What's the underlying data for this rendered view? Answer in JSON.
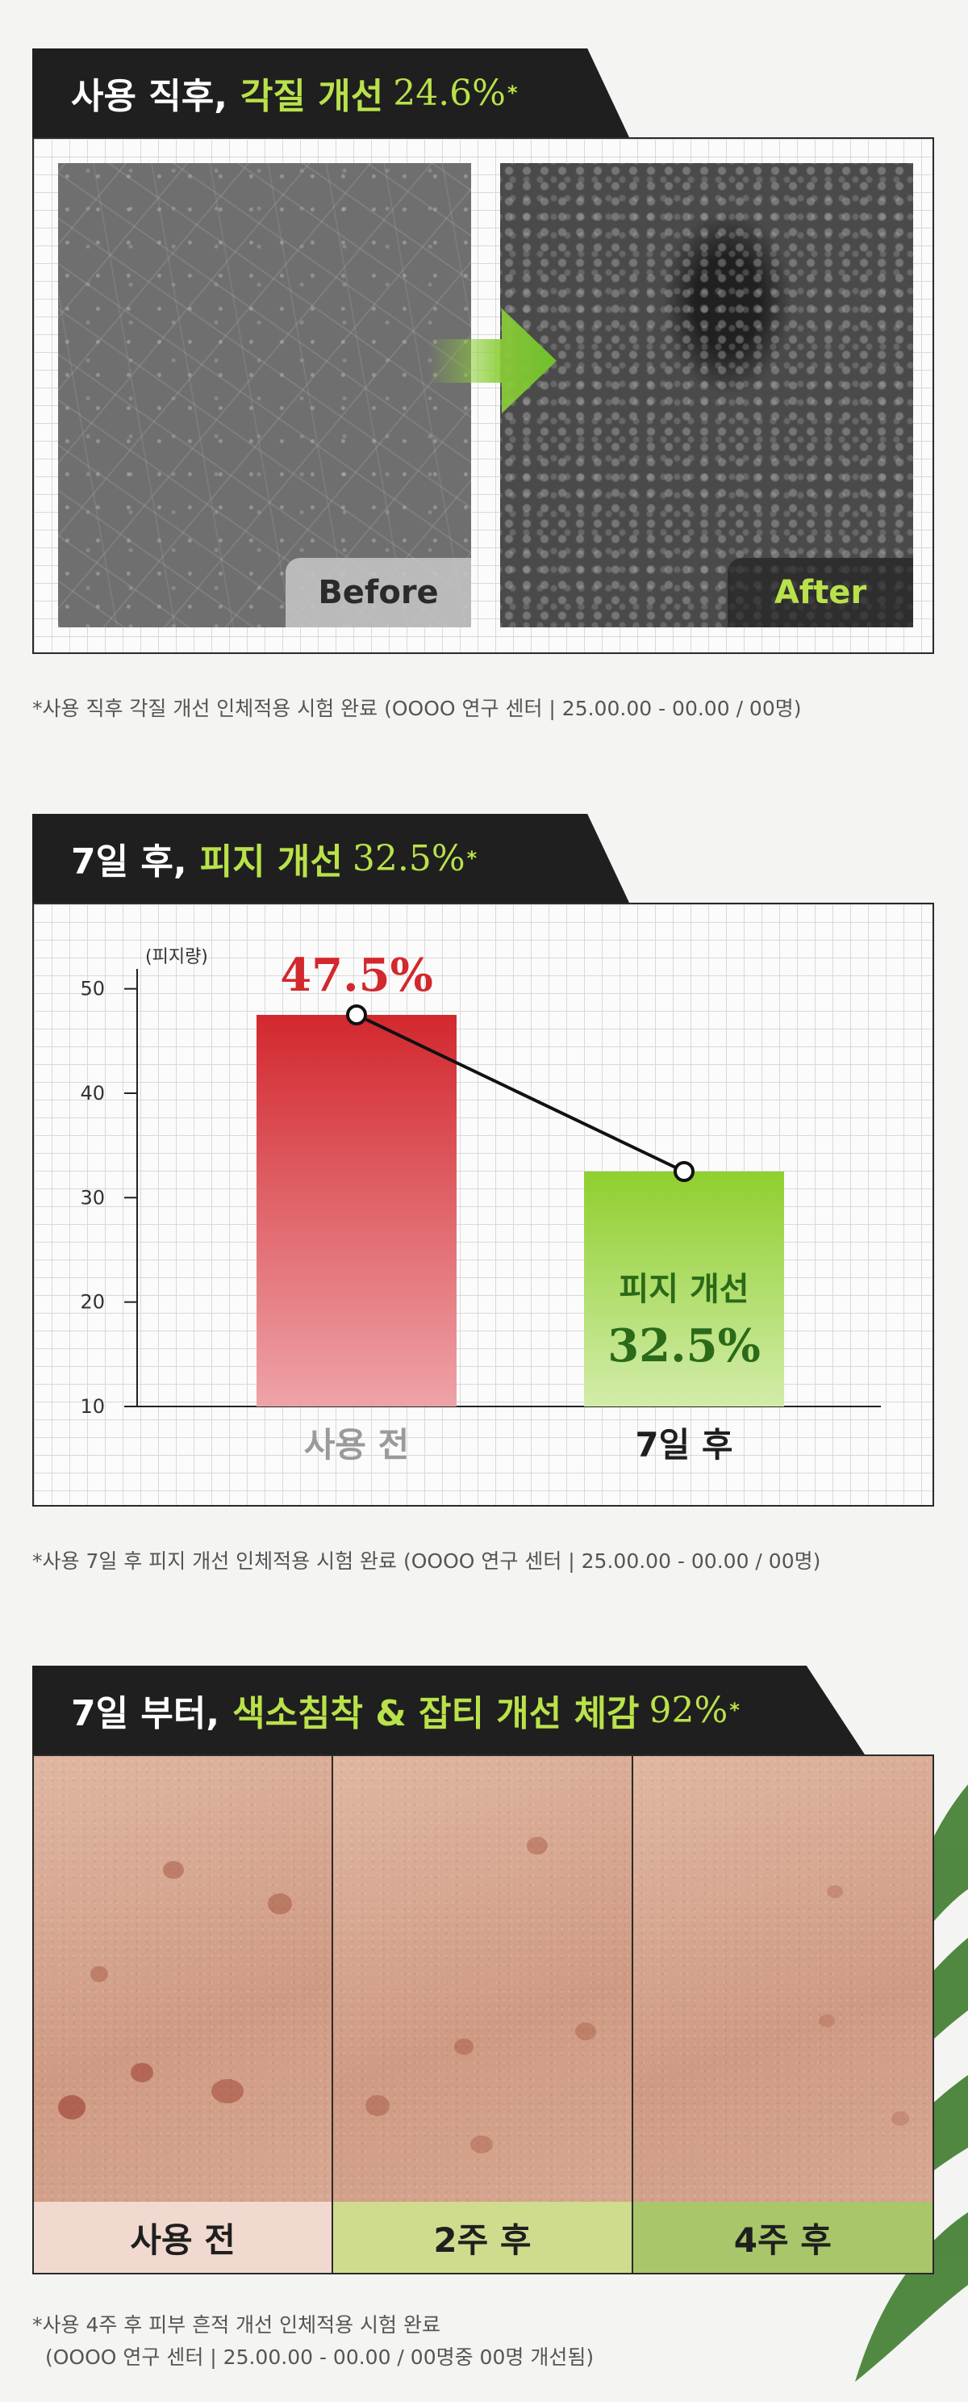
{
  "section1": {
    "title_prefix": "사용 직후,",
    "title_highlight": "각질 개선",
    "title_number": "24.6%",
    "asterisk": "*",
    "before_label": "Before",
    "after_label": "After",
    "footnote": "*사용 직후 각질 개선 인체적용 시험 완료 (OOOO 연구 센터 | 25.00.00 - 00.00 / 00명)"
  },
  "section2": {
    "title_prefix": "7일 후,",
    "title_highlight": "피지 개선",
    "title_number": "32.5%",
    "asterisk": "*",
    "bar2_caption": "피지 개선",
    "footnote": "*사용 7일 후 피지 개선 인체적용 시험 완료 (OOOO 연구 센터 | 25.00.00 - 00.00 / 00명)"
  },
  "chart_data": {
    "type": "bar",
    "ylabel": "(피지량)",
    "ylim": [
      10,
      55
    ],
    "yticks": [
      10,
      20,
      30,
      40,
      50
    ],
    "categories": [
      "사용 전",
      "7일 후"
    ],
    "values": [
      47.5,
      32.5
    ],
    "data_labels": [
      "47.5%",
      "32.5%"
    ],
    "colors": [
      "#d2282e",
      "#8fcf2e"
    ],
    "grid": true,
    "connector_line": true
  },
  "section3": {
    "title_prefix": "7일 부터,",
    "title_highlight": "색소침착 & 잡티 개선 체감",
    "title_number": "92%",
    "asterisk": "*",
    "panels": [
      {
        "label": "사용 전",
        "bg": "#f1d9d0"
      },
      {
        "label": "2주 후",
        "bg": "#cfdc8e"
      },
      {
        "label": "4주 후",
        "bg": "#a9c66a"
      }
    ],
    "footnote_line1": "*사용 4주 후 피부 흔적 개선 인체적용 시험 완료",
    "footnote_line2": "(OOOO 연구 센터 | 25.00.00 - 00.00 / 00명중 00명 개선됨)"
  }
}
